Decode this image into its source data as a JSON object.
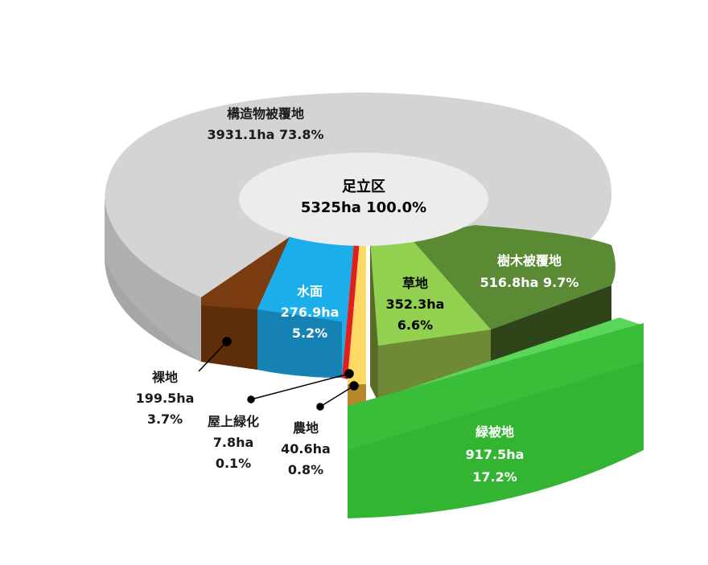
{
  "chart_data": {
    "type": "pie",
    "style": "3d-exploded-donut",
    "center_label": {
      "name": "足立区",
      "value": "5325ha 100.0%"
    },
    "slices": [
      {
        "id": "building",
        "name": "構造物被覆地",
        "hectares": 3931.1,
        "percent": 73.8,
        "value_label": "3931.1ha 73.8%",
        "color": "#d4d4d4"
      },
      {
        "id": "bare",
        "name": "裸地",
        "hectares": 199.5,
        "percent": 3.7,
        "ha_label": "199.5ha",
        "pct_label": "3.7%",
        "color": "#7a3c10"
      },
      {
        "id": "water",
        "name": "水面",
        "hectares": 276.9,
        "percent": 5.2,
        "ha_label": "276.9ha",
        "pct_label": "5.2%",
        "color": "#1aaeeb"
      },
      {
        "id": "roof",
        "name": "屋上緑化",
        "hectares": 7.8,
        "percent": 0.1,
        "ha_label": "7.8ha",
        "pct_label": "0.1%",
        "color": "#e02020"
      },
      {
        "id": "farm",
        "name": "農地",
        "hectares": 40.6,
        "percent": 0.8,
        "ha_label": "40.6ha",
        "pct_label": "0.8%",
        "color": "#ffd966"
      },
      {
        "id": "grass",
        "name": "草地",
        "hectares": 352.3,
        "percent": 6.6,
        "ha_label": "352.3ha",
        "pct_label": "6.6%",
        "color": "#92d050"
      },
      {
        "id": "trees",
        "name": "樹木被覆地",
        "hectares": 516.8,
        "percent": 9.7,
        "value_label": "516.8ha 9.7%",
        "color": "#4f7a2e"
      }
    ],
    "group": {
      "name": "緑被地",
      "hectares": 917.5,
      "percent": 17.2,
      "ha_label": "917.5ha",
      "pct_label": "17.2%",
      "color": "#33c433"
    }
  }
}
